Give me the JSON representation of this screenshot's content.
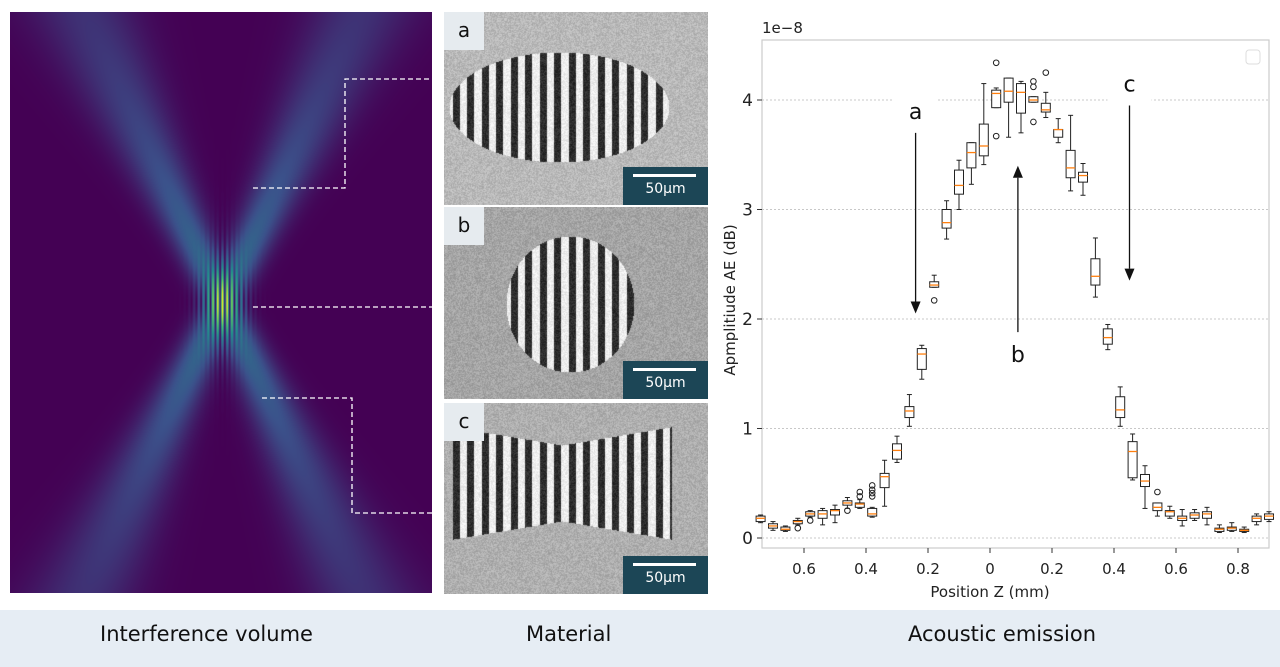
{
  "panels": {
    "interference": {
      "caption": "Interference volume"
    },
    "material": {
      "caption": "Material",
      "images": [
        {
          "label": "a",
          "scale_bar": "50µm"
        },
        {
          "label": "b",
          "scale_bar": "50µm"
        },
        {
          "label": "c",
          "scale_bar": "50µm"
        }
      ]
    },
    "acoustic": {
      "caption": "Acoustic emission"
    }
  },
  "colors": {
    "footer_bg": "#e6edf4",
    "scale_bar_bg": "#1c4656",
    "median": "#ff7f0e",
    "viridis_low": "#440154",
    "viridis_high": "#fde725"
  },
  "chart_data": {
    "type": "boxplot",
    "xlabel": "Position Z (mm)",
    "ylabel": "Apmplitiude AE (dB)",
    "y_offset_label": "1e−8",
    "xlim": [
      -0.735,
      0.9
    ],
    "ylim": [
      -0.09,
      4.55
    ],
    "grid": "y dotted",
    "legend": "top-right (empty)",
    "x_ticks": [
      -0.6,
      -0.4,
      -0.2,
      0,
      0.2,
      0.4,
      0.6,
      0.8
    ],
    "x_tick_labels": [
      "0.6",
      "0.4",
      "0.2",
      "0",
      "0.2",
      "0.4",
      "0.6",
      "0.8"
    ],
    "y_ticks": [
      0,
      1,
      2,
      3,
      4
    ],
    "y_tick_labels": [
      "0",
      "1",
      "2",
      "3",
      "4"
    ],
    "annotations": [
      {
        "text": "a",
        "x": -0.24,
        "arrow_from": 3.7,
        "arrow_to": 2.05,
        "direction": "down"
      },
      {
        "text": "b",
        "x": 0.09,
        "arrow_from": 1.88,
        "arrow_to": 3.4,
        "direction": "up"
      },
      {
        "text": "c",
        "x": 0.45,
        "arrow_from": 3.95,
        "arrow_to": 2.35,
        "direction": "down"
      }
    ],
    "boxes": [
      {
        "x": -0.74,
        "stats": [
          0.14,
          0.15,
          0.18,
          0.2,
          0.21
        ],
        "outliers": []
      },
      {
        "x": -0.7,
        "stats": [
          0.07,
          0.09,
          0.11,
          0.13,
          0.15
        ],
        "outliers": []
      },
      {
        "x": -0.66,
        "stats": [
          0.06,
          0.07,
          0.08,
          0.1,
          0.11
        ],
        "outliers": []
      },
      {
        "x": -0.62,
        "stats": [
          0.12,
          0.13,
          0.15,
          0.16,
          0.18
        ],
        "outliers": [
          0.09
        ]
      },
      {
        "x": -0.58,
        "stats": [
          0.19,
          0.2,
          0.22,
          0.24,
          0.25
        ],
        "outliers": [
          0.16
        ]
      },
      {
        "x": -0.54,
        "stats": [
          0.12,
          0.18,
          0.22,
          0.25,
          0.27
        ],
        "outliers": []
      },
      {
        "x": -0.5,
        "stats": [
          0.14,
          0.21,
          0.25,
          0.26,
          0.3
        ],
        "outliers": []
      },
      {
        "x": -0.46,
        "stats": [
          0.27,
          0.3,
          0.32,
          0.34,
          0.37
        ],
        "outliers": [
          0.25
        ]
      },
      {
        "x": -0.42,
        "stats": [
          0.27,
          0.28,
          0.31,
          0.32,
          0.35
        ],
        "outliers": [
          0.38,
          0.42
        ]
      },
      {
        "x": -0.38,
        "stats": [
          0.19,
          0.2,
          0.22,
          0.27,
          0.28
        ],
        "outliers": [
          0.38,
          0.41,
          0.44,
          0.48
        ]
      },
      {
        "x": -0.34,
        "stats": [
          0.29,
          0.46,
          0.56,
          0.59,
          0.71
        ],
        "outliers": []
      },
      {
        "x": -0.3,
        "stats": [
          0.69,
          0.72,
          0.8,
          0.86,
          0.93
        ],
        "outliers": []
      },
      {
        "x": -0.26,
        "stats": [
          1.02,
          1.1,
          1.16,
          1.2,
          1.31
        ],
        "outliers": []
      },
      {
        "x": -0.22,
        "stats": [
          1.45,
          1.54,
          1.68,
          1.73,
          1.76
        ],
        "outliers": []
      },
      {
        "x": -0.18,
        "stats": [
          2.29,
          2.29,
          2.31,
          2.34,
          2.4
        ],
        "outliers": [
          2.17
        ]
      },
      {
        "x": -0.14,
        "stats": [
          2.73,
          2.83,
          2.88,
          3.0,
          3.08
        ],
        "outliers": []
      },
      {
        "x": -0.1,
        "stats": [
          3.0,
          3.14,
          3.22,
          3.36,
          3.45
        ],
        "outliers": []
      },
      {
        "x": -0.06,
        "stats": [
          3.23,
          3.38,
          3.52,
          3.61,
          3.61
        ],
        "outliers": []
      },
      {
        "x": -0.02,
        "stats": [
          3.41,
          3.49,
          3.58,
          3.78,
          4.15
        ],
        "outliers": []
      },
      {
        "x": 0.02,
        "stats": [
          3.93,
          3.93,
          4.06,
          4.09,
          4.11
        ],
        "outliers": [
          4.34,
          3.67
        ]
      },
      {
        "x": 0.06,
        "stats": [
          3.66,
          3.98,
          4.08,
          4.2,
          4.2
        ],
        "outliers": []
      },
      {
        "x": 0.1,
        "stats": [
          3.7,
          3.88,
          4.07,
          4.15,
          4.17
        ],
        "outliers": []
      },
      {
        "x": 0.14,
        "stats": [
          3.98,
          3.98,
          4.0,
          4.03,
          4.03
        ],
        "outliers": [
          4.12,
          4.17,
          3.8
        ]
      },
      {
        "x": 0.18,
        "stats": [
          3.84,
          3.89,
          3.91,
          3.97,
          4.07
        ],
        "outliers": [
          4.25
        ]
      },
      {
        "x": 0.22,
        "stats": [
          3.61,
          3.66,
          3.73,
          3.73,
          3.83
        ],
        "outliers": []
      },
      {
        "x": 0.26,
        "stats": [
          3.17,
          3.29,
          3.38,
          3.54,
          3.86
        ],
        "outliers": []
      },
      {
        "x": 0.3,
        "stats": [
          3.13,
          3.25,
          3.31,
          3.34,
          3.42
        ],
        "outliers": []
      },
      {
        "x": 0.34,
        "stats": [
          2.2,
          2.31,
          2.39,
          2.55,
          2.74
        ],
        "outliers": []
      },
      {
        "x": 0.38,
        "stats": [
          1.72,
          1.77,
          1.83,
          1.91,
          1.95
        ],
        "outliers": []
      },
      {
        "x": 0.42,
        "stats": [
          1.02,
          1.1,
          1.17,
          1.29,
          1.38
        ],
        "outliers": []
      },
      {
        "x": 0.46,
        "stats": [
          0.53,
          0.55,
          0.79,
          0.88,
          0.95
        ],
        "outliers": []
      },
      {
        "x": 0.5,
        "stats": [
          0.27,
          0.47,
          0.52,
          0.58,
          0.66
        ],
        "outliers": []
      },
      {
        "x": 0.54,
        "stats": [
          0.2,
          0.25,
          0.28,
          0.32,
          0.32
        ],
        "outliers": [
          0.42
        ]
      },
      {
        "x": 0.58,
        "stats": [
          0.18,
          0.2,
          0.24,
          0.25,
          0.29
        ],
        "outliers": []
      },
      {
        "x": 0.62,
        "stats": [
          0.11,
          0.16,
          0.18,
          0.2,
          0.26
        ],
        "outliers": []
      },
      {
        "x": 0.66,
        "stats": [
          0.16,
          0.18,
          0.21,
          0.23,
          0.26
        ],
        "outliers": []
      },
      {
        "x": 0.7,
        "stats": [
          0.12,
          0.18,
          0.22,
          0.24,
          0.28
        ],
        "outliers": []
      },
      {
        "x": 0.74,
        "stats": [
          0.05,
          0.06,
          0.08,
          0.09,
          0.12
        ],
        "outliers": []
      },
      {
        "x": 0.78,
        "stats": [
          0.06,
          0.07,
          0.09,
          0.1,
          0.14
        ],
        "outliers": []
      },
      {
        "x": 0.82,
        "stats": [
          0.05,
          0.06,
          0.07,
          0.08,
          0.1
        ],
        "outliers": []
      },
      {
        "x": 0.86,
        "stats": [
          0.12,
          0.15,
          0.18,
          0.2,
          0.22
        ],
        "outliers": []
      },
      {
        "x": 0.9,
        "stats": [
          0.15,
          0.17,
          0.2,
          0.22,
          0.24
        ],
        "outliers": []
      }
    ]
  }
}
